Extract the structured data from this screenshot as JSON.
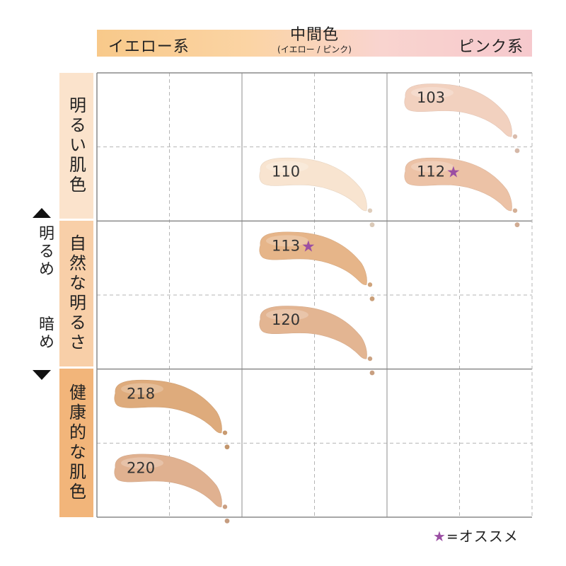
{
  "header": {
    "yellow_label": "イエロー系",
    "middle_label": "中間色",
    "middle_sublabel": "(イエロー / ピンク)",
    "pink_label": "ピンク系"
  },
  "row_groups": [
    {
      "label": "明るい肌色",
      "color": "#fbe3cc"
    },
    {
      "label": "自然な明るさ",
      "color": "#f8cfa8"
    },
    {
      "label": "健康的な肌色",
      "color": "#f2b57a"
    }
  ],
  "axis": {
    "bright_label": "明るめ",
    "dark_label": "暗め"
  },
  "legend": {
    "star": "★",
    "text": "=オススメ"
  },
  "chart_data": {
    "type": "table",
    "columns": [
      "イエロー系",
      "中間色",
      "ピンク系"
    ],
    "rows": [
      "明るい肌色",
      "自然な明るさ",
      "健康的な肌色"
    ],
    "shades": [
      {
        "code": "103",
        "column": "ピンク系",
        "row": "明るい肌色",
        "level": 1,
        "recommended": false,
        "color": "#f2d1bf"
      },
      {
        "code": "112",
        "column": "ピンク系",
        "row": "明るい肌色",
        "level": 2,
        "recommended": true,
        "color": "#ecc2a6"
      },
      {
        "code": "110",
        "column": "中間色",
        "row": "明るい肌色",
        "level": 2,
        "recommended": false,
        "color": "#f8e4d0"
      },
      {
        "code": "113",
        "column": "中間色",
        "row": "自然な明るさ",
        "level": 3,
        "recommended": true,
        "color": "#e6b589"
      },
      {
        "code": "120",
        "column": "中間色",
        "row": "自然な明るさ",
        "level": 4,
        "recommended": false,
        "color": "#e3b592"
      },
      {
        "code": "218",
        "column": "イエロー系",
        "row": "健康的な肌色",
        "level": 5,
        "recommended": false,
        "color": "#deab7c"
      },
      {
        "code": "220",
        "column": "イエロー系",
        "row": "健康的な肌色",
        "level": 6,
        "recommended": false,
        "color": "#e0b190"
      }
    ]
  }
}
